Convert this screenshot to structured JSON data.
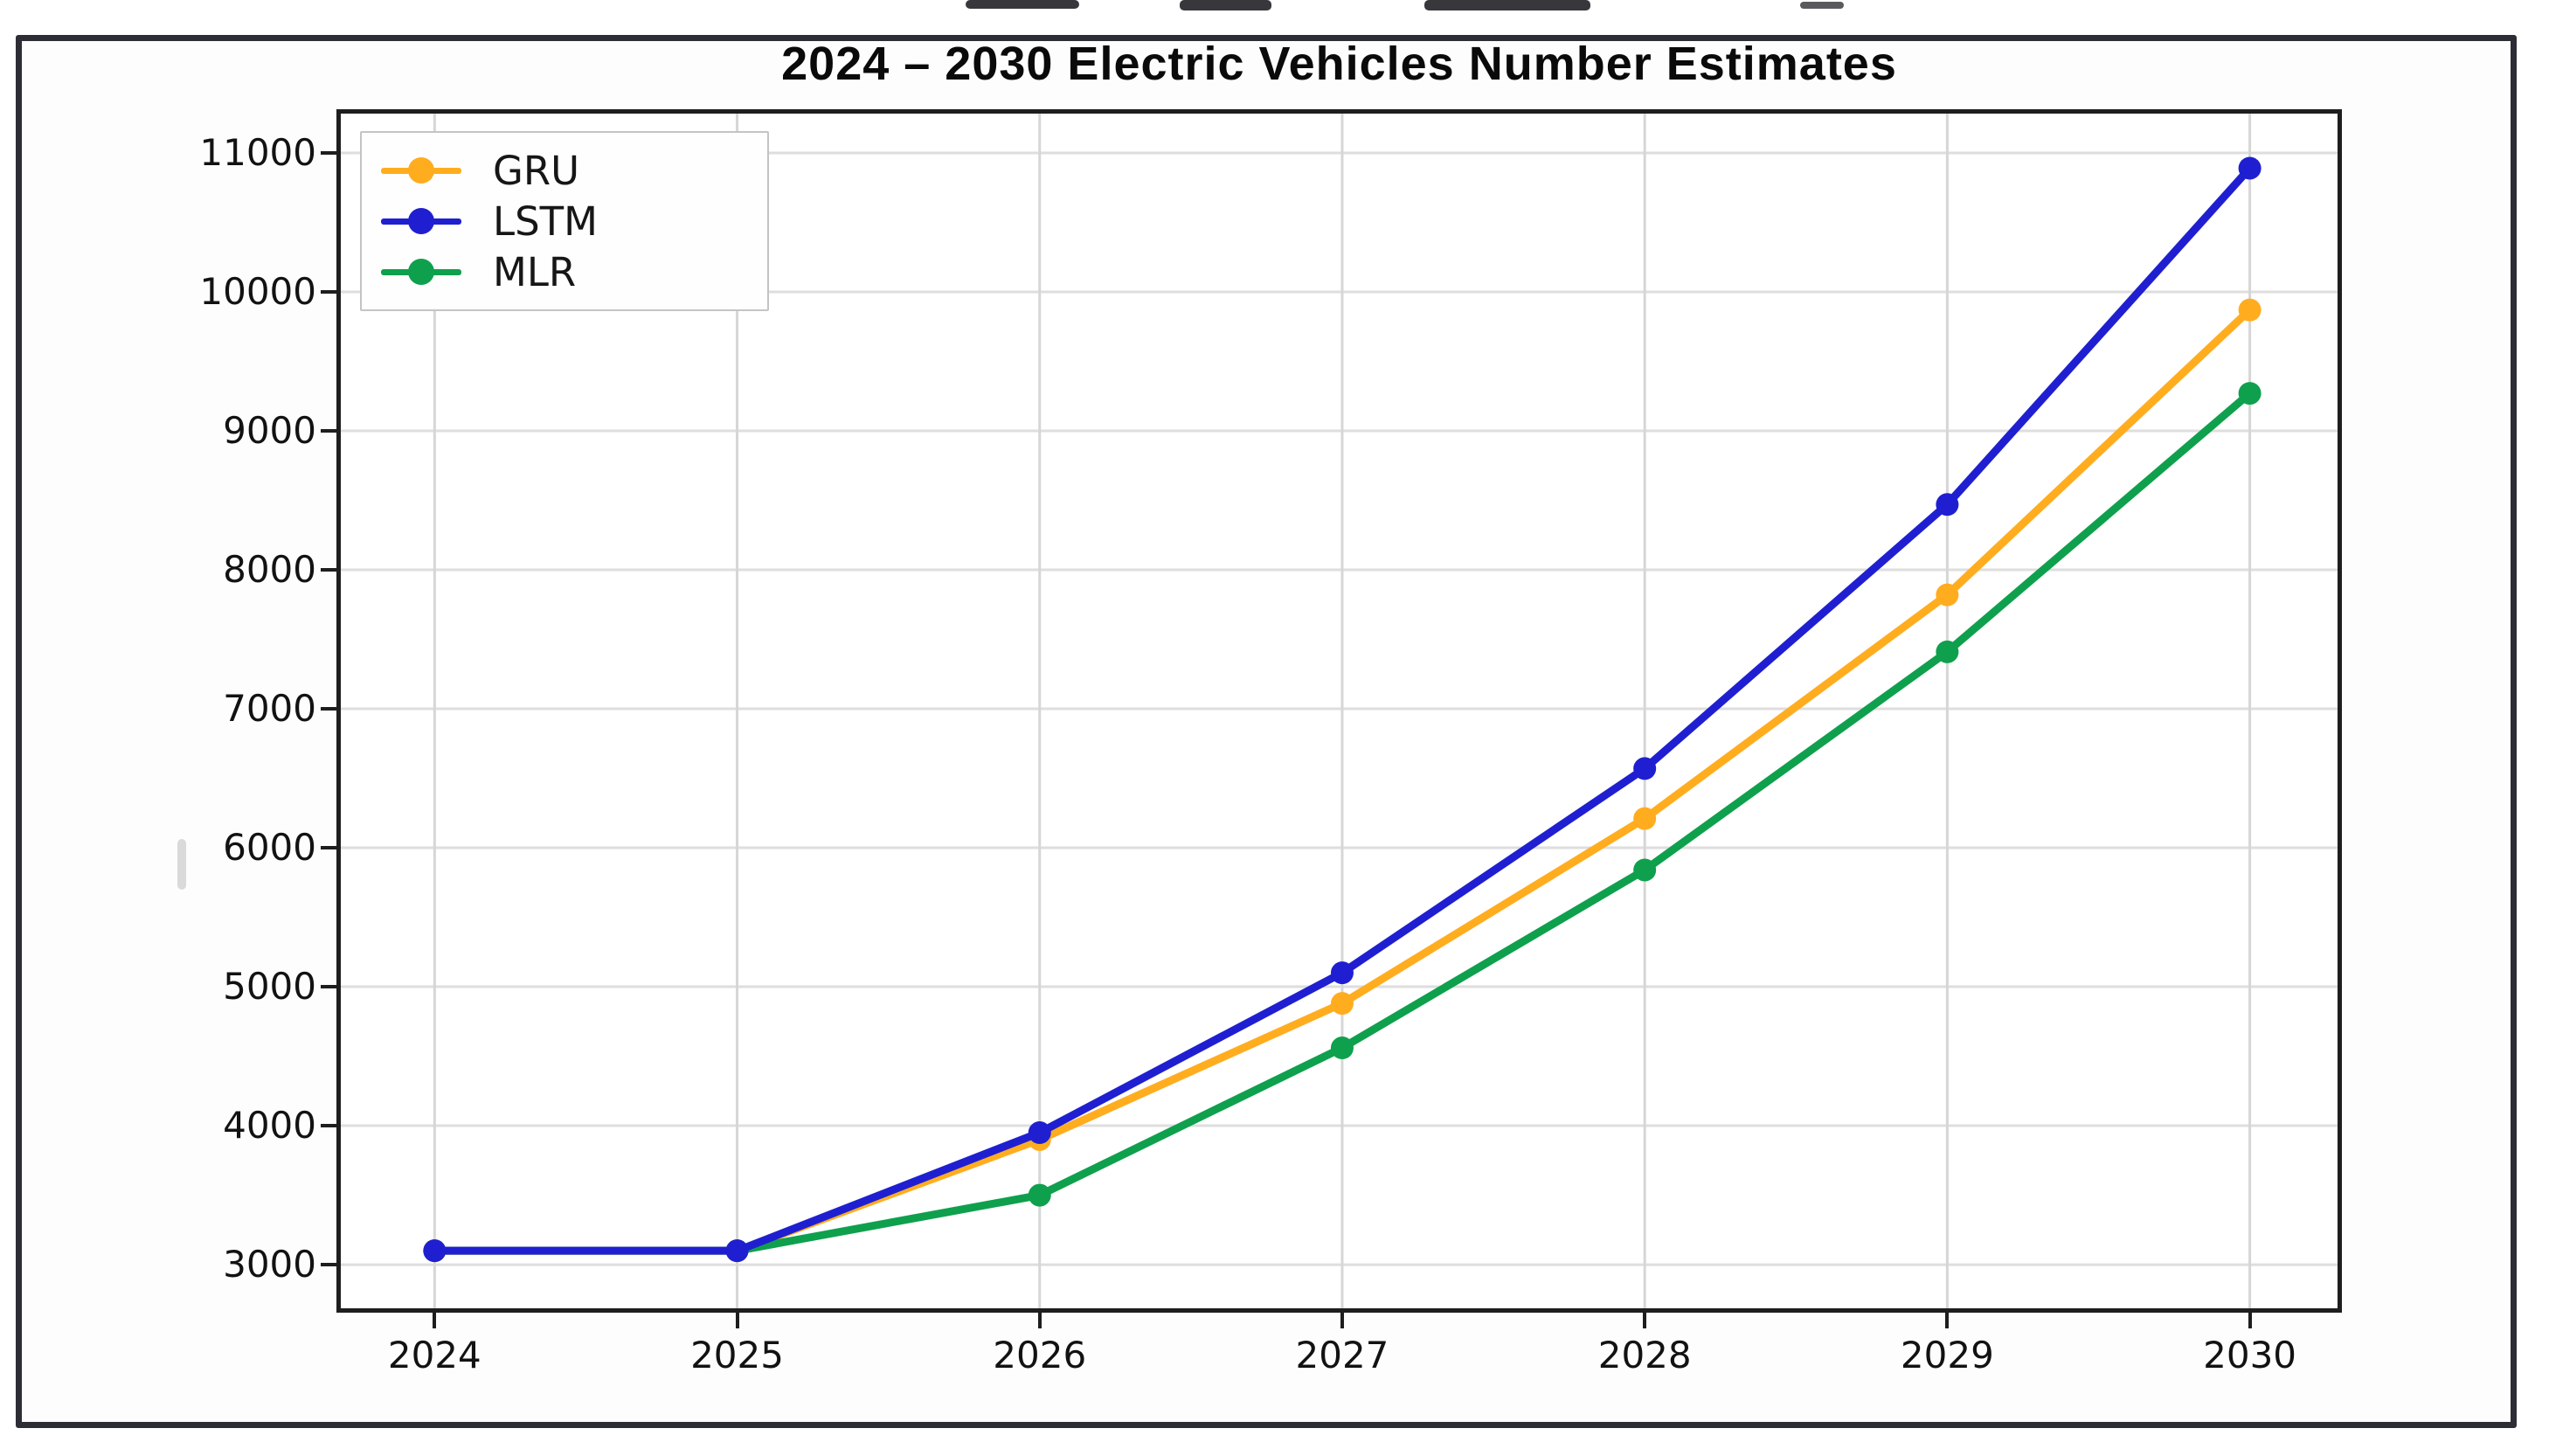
{
  "figure": {
    "title": "2024 – 2030 Electric Vehicles Number Estimates"
  },
  "chart_data": {
    "type": "line",
    "title": "2024 – 2030 Electric Vehicles Number Estimates",
    "x": [
      2024,
      2025,
      2026,
      2027,
      2028,
      2029,
      2030
    ],
    "x_tick_labels": [
      "2024",
      "2025",
      "2026",
      "2027",
      "2028",
      "2029",
      "2030"
    ],
    "series": [
      {
        "name": "GRU",
        "color": "#FFAD1F",
        "values": [
          3100,
          3100,
          3900,
          4880,
          6210,
          7820,
          9870
        ]
      },
      {
        "name": "LSTM",
        "color": "#1F1FD1",
        "values": [
          3100,
          3100,
          3950,
          5100,
          6570,
          8470,
          10890
        ]
      },
      {
        "name": "MLR",
        "color": "#0FA04D",
        "values": [
          3100,
          3100,
          3500,
          4560,
          5840,
          7410,
          9270
        ]
      }
    ],
    "xlabel": "",
    "ylabel": "",
    "y_ticks": [
      3000,
      4000,
      5000,
      6000,
      7000,
      8000,
      9000,
      10000,
      11000
    ],
    "ylim": [
      2686,
      11283
    ],
    "xlim": [
      2023.69,
      2030.29
    ],
    "grid": true,
    "legend_position": "upper-left",
    "marker": "circle"
  },
  "style_colors": {
    "grid_horizontal": "#dedede",
    "grid_vertical": "#d6d6d6",
    "spine": "#1e1e1e",
    "outer_frame": "#2d2d35"
  }
}
